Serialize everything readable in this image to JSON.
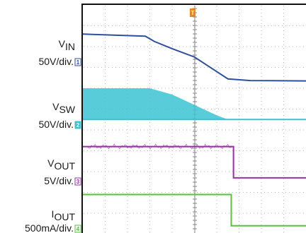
{
  "chart_data": {
    "type": "line",
    "title": "",
    "grid": true,
    "trigger_marker": "T",
    "x_divisions": 10,
    "y_divisions": 8,
    "channels": [
      {
        "id": "1",
        "symbol": "V",
        "subscript": "IN",
        "scale": "50V/div.",
        "color": "#2d4f9e",
        "shape": "line",
        "points": [
          [
            0,
            -1.4
          ],
          [
            2.8,
            -1.5
          ],
          [
            3.2,
            -1.75
          ],
          [
            4.0,
            -2.1
          ],
          [
            5.0,
            -2.5
          ],
          [
            6.0,
            -3.2
          ],
          [
            6.5,
            -3.55
          ],
          [
            7.5,
            -3.63
          ],
          [
            10,
            -3.65
          ]
        ]
      },
      {
        "id": "2",
        "symbol": "V",
        "subscript": "SW",
        "scale": "50V/div.",
        "color": "#3cc3d2",
        "shape": "filled-envelope",
        "baseline": -5.5,
        "envelope": [
          [
            0,
            -4.0
          ],
          [
            3.0,
            -4.0
          ],
          [
            4.0,
            -4.3
          ],
          [
            5.0,
            -4.8
          ],
          [
            6.0,
            -5.3
          ],
          [
            6.5,
            -5.5
          ]
        ],
        "points": [
          [
            0,
            -5.5
          ],
          [
            10,
            -5.5
          ]
        ]
      },
      {
        "id": "3",
        "symbol": "V",
        "subscript": "OUT",
        "scale": "5V/div.",
        "color": "#9c2fa8",
        "shape": "line",
        "points": [
          [
            0,
            -6.8
          ],
          [
            6.75,
            -6.8
          ],
          [
            6.75,
            -8.3
          ],
          [
            10,
            -8.3
          ]
        ]
      },
      {
        "id": "4",
        "symbol": "I",
        "subscript": "OUT",
        "scale": "500mA/div.",
        "color": "#57c23a",
        "shape": "line",
        "points": [
          [
            0,
            -9.1
          ],
          [
            6.65,
            -9.1
          ],
          [
            6.65,
            -10.6
          ],
          [
            10,
            -10.6
          ]
        ]
      }
    ]
  },
  "colors": {
    "grid": "#b8b8b8",
    "frame": "#111111",
    "trigger": "#e8871e"
  }
}
